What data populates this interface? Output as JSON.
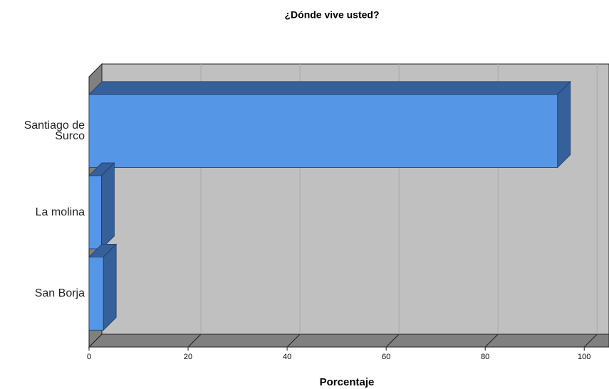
{
  "chart_data": {
    "type": "bar",
    "orientation": "horizontal",
    "three_d": true,
    "title": "¿Dónde vive usted?",
    "x_label": "Porcentaje",
    "categories": [
      "Santiago de Surco",
      "La molina",
      "San Borja"
    ],
    "values": [
      94.6,
      2.5,
      2.9
    ],
    "color": "#5596e6",
    "xlim": [
      0,
      105
    ],
    "xticks": [
      0,
      20,
      40,
      60,
      80,
      100
    ],
    "grid": true
  }
}
